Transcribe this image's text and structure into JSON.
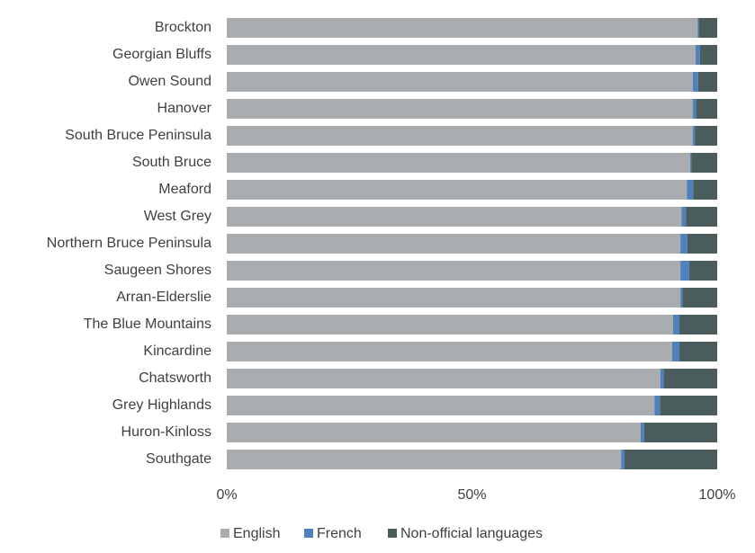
{
  "chart_data": {
    "type": "stacked-barh",
    "categories": [
      "Brockton",
      "Georgian Bluffs",
      "Owen Sound",
      "Hanover",
      "South Bruce Peninsula",
      "South Bruce",
      "Meaford",
      "West Grey",
      "Northern Bruce Peninsula",
      "Saugeen Shores",
      "Arran-Elderslie",
      "The Blue Mountains",
      "Kincardine",
      "Chatsworth",
      "Grey Highlands",
      "Huron-Kinloss",
      "Southgate"
    ],
    "series": [
      {
        "name": "English",
        "color": "#a9adb0",
        "values": [
          96.0,
          95.6,
          95.0,
          95.0,
          95.0,
          94.5,
          93.8,
          92.7,
          92.5,
          92.5,
          92.5,
          91.0,
          90.8,
          88.4,
          87.2,
          84.4,
          80.4
        ]
      },
      {
        "name": "French",
        "color": "#4f81bd",
        "values": [
          0.2,
          0.9,
          1.1,
          0.7,
          0.5,
          0.2,
          1.3,
          0.9,
          1.4,
          1.8,
          0.4,
          1.3,
          1.5,
          0.7,
          1.1,
          0.7,
          0.7
        ]
      },
      {
        "name": "Non-official languages",
        "color": "#4a5c5b",
        "values": [
          3.8,
          3.5,
          3.9,
          4.3,
          4.5,
          5.3,
          4.9,
          6.4,
          6.1,
          5.7,
          7.1,
          7.7,
          7.7,
          10.9,
          11.7,
          14.9,
          18.9
        ]
      }
    ],
    "xlim": [
      0,
      100
    ],
    "xticks": [
      {
        "value": 0,
        "label": "0%"
      },
      {
        "value": 50,
        "label": "50%"
      },
      {
        "value": 100,
        "label": "100%"
      }
    ],
    "legend": "bottom"
  }
}
